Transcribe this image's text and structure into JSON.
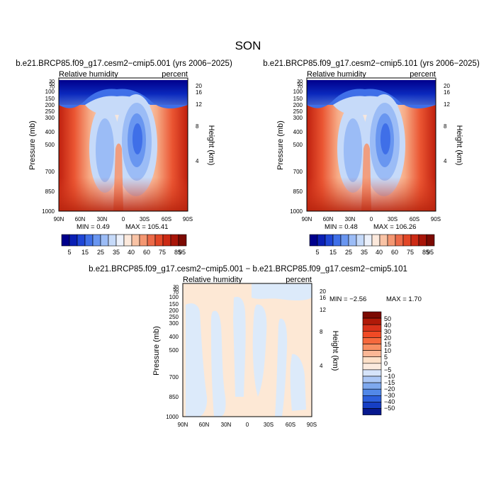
{
  "title": "SON",
  "colorbar_left_labels": [
    "5",
    "15",
    "25",
    "35",
    "40",
    "60",
    "75",
    "85",
    "95"
  ],
  "colorbar_left_colors": [
    "#00008c",
    "#0a1fb4",
    "#1f46d6",
    "#3f6fe8",
    "#6996f0",
    "#9bbcf6",
    "#c6daf9",
    "#ecf1fb",
    "#fce9dc",
    "#f9c3a5",
    "#f49772",
    "#ec6a48",
    "#e24727",
    "#cc2a14",
    "#a81508",
    "#7c0a02"
  ],
  "colorbar_diff_labels": [
    "50",
    "40",
    "30",
    "20",
    "15",
    "10",
    "5",
    "0",
    "−5",
    "−10",
    "−15",
    "−20",
    "−30",
    "−40",
    "−50"
  ],
  "colorbar_diff_colors": [
    "#7c0a02",
    "#b01a08",
    "#d9321a",
    "#f04a25",
    "#f6693d",
    "#f88f63",
    "#fbb796",
    "#fde0c8",
    "#fbeade",
    "#d6e4fa",
    "#abc7f6",
    "#7ea8ee",
    "#5288e8",
    "#2d5fdc",
    "#163ec4",
    "#07188e"
  ],
  "chart_data": [
    {
      "type": "contour",
      "panel": "left",
      "title": "b.e21.BRCP85.f09_g17.cesm2−cmip5.001 (yrs 2006−2025)",
      "variable": "Relative humidity",
      "units": "percent",
      "xlabel": "",
      "x_ticks": [
        "90N",
        "60N",
        "30N",
        "0",
        "30S",
        "60S",
        "90S"
      ],
      "ylabel": "Pressure (mb)",
      "y_ticks": [
        "30",
        "50",
        "70",
        "100",
        "150",
        "200",
        "250",
        "300",
        "400",
        "500",
        "700",
        "850",
        "1000"
      ],
      "y2label": "Height (km)",
      "y2_ticks": [
        "20",
        "16",
        "12",
        "8",
        "4"
      ],
      "min_text": "MIN =    0.49",
      "max_text": "MAX =  105.41"
    },
    {
      "type": "contour",
      "panel": "right",
      "title": "b.e21.BRCP85.f09_g17.cesm2−cmip5.101 (yrs 2006−2025)",
      "variable": "Relative humidity",
      "units": "percent",
      "xlabel": "",
      "x_ticks": [
        "90N",
        "60N",
        "30N",
        "0",
        "30S",
        "60S",
        "90S"
      ],
      "ylabel": "Pressure (mb)",
      "y_ticks": [
        "30",
        "50",
        "70",
        "100",
        "150",
        "200",
        "250",
        "300",
        "400",
        "500",
        "700",
        "850",
        "1000"
      ],
      "y2label": "Height (km)",
      "y2_ticks": [
        "20",
        "16",
        "12",
        "8",
        "4"
      ],
      "min_text": "MIN =    0.48",
      "max_text": "MAX =  106.26"
    },
    {
      "type": "contour",
      "panel": "difference",
      "title": "b.e21.BRCP85.f09_g17.cesm2−cmip5.001 − b.e21.BRCP85.f09_g17.cesm2−cmip5.101",
      "variable": "Relative humidity",
      "units": "percent",
      "xlabel": "",
      "x_ticks": [
        "90N",
        "60N",
        "30N",
        "0",
        "30S",
        "60S",
        "90S"
      ],
      "ylabel": "Pressure (mb)",
      "y_ticks": [
        "30",
        "50",
        "70",
        "100",
        "150",
        "200",
        "250",
        "300",
        "400",
        "500",
        "700",
        "850",
        "1000"
      ],
      "y2label": "Height (km)",
      "y2_ticks": [
        "20",
        "16",
        "12",
        "8",
        "4"
      ],
      "min_text": "MIN =   −2.56",
      "max_text": "MAX =    1.70"
    }
  ]
}
